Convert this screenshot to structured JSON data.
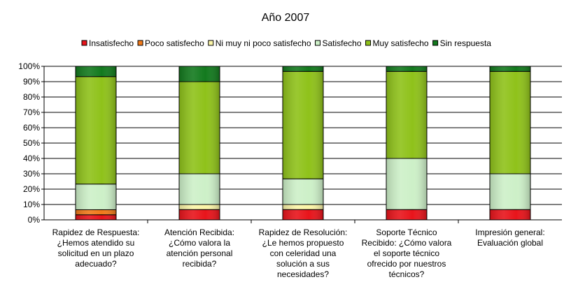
{
  "chart_data": {
    "type": "bar",
    "stacked": true,
    "title": "Año 2007",
    "xlabel": "",
    "ylabel": "",
    "ylim": [
      0,
      100
    ],
    "y_ticks": [
      "0%",
      "10%",
      "20%",
      "30%",
      "40%",
      "50%",
      "60%",
      "70%",
      "80%",
      "90%",
      "100%"
    ],
    "grid": true,
    "legend_position": "top",
    "categories": [
      [
        "Rapidez de Respuesta:",
        "¿Hemos atendido su",
        "solicitud en un plazo",
        "adecuado?"
      ],
      [
        "Atención Recibida:",
        "¿Cómo valora la",
        "atención personal",
        "recibida?"
      ],
      [
        "Rapidez de Resolución:",
        "¿Le hemos propuesto",
        "con celeridad una",
        "solución a sus",
        "necesidades?"
      ],
      [
        "Soporte Técnico",
        "Recibido: ¿Cómo valora",
        "el soporte técnico",
        "ofrecido por nuestros",
        "técnicos?"
      ],
      [
        "Impresión general:",
        "Evaluación global"
      ]
    ],
    "series": [
      {
        "name": "Insatisfecho",
        "color": "#e8141b",
        "values": [
          3.3,
          6.7,
          6.7,
          6.7,
          6.7
        ]
      },
      {
        "name": "Poco satisfecho",
        "color": "#f07a1a",
        "values": [
          3.3,
          0,
          0,
          0,
          0
        ]
      },
      {
        "name": "Ni muy ni poco satisfecho",
        "color": "#fbf5a8",
        "values": [
          0,
          3.3,
          3.3,
          0,
          0
        ]
      },
      {
        "name": "Satisfecho",
        "color": "#cdf0c8",
        "values": [
          16.7,
          20,
          16.7,
          33.3,
          23.3
        ]
      },
      {
        "name": "Muy satisfecho",
        "color": "#8fc21a",
        "values": [
          70,
          60,
          70,
          56.7,
          66.7
        ]
      },
      {
        "name": "Sin respuesta",
        "color": "#137a1e",
        "values": [
          6.7,
          10,
          3.3,
          3.3,
          3.3
        ]
      }
    ]
  }
}
